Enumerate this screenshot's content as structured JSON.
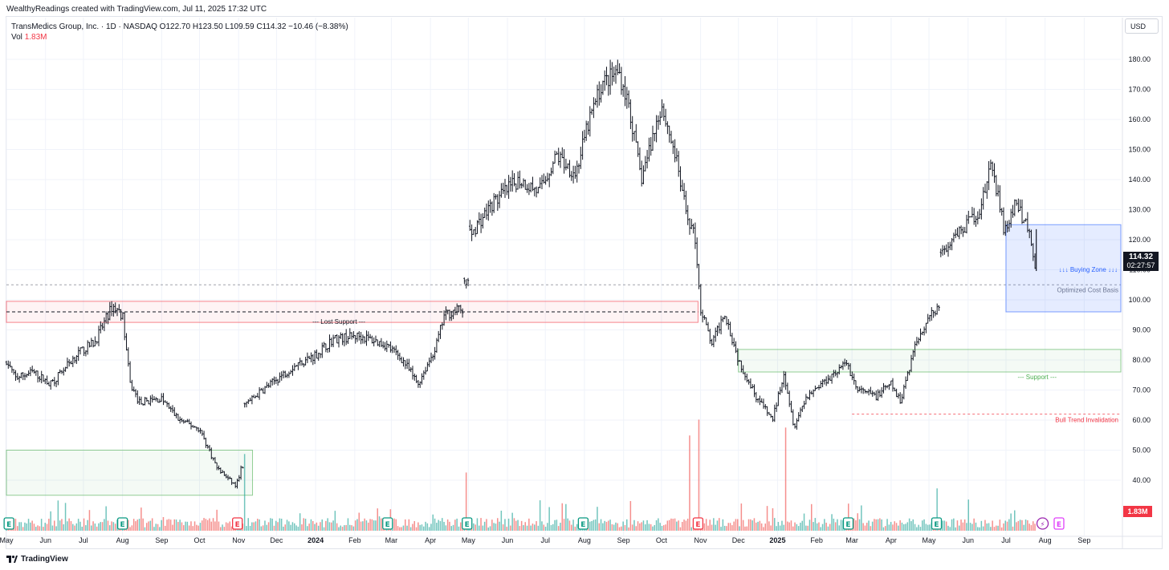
{
  "attribution": "WealthyReadings created with TradingView.com, Jul 11, 2025 17:32 UTC",
  "legend": {
    "line1": "TransMedics Group, Inc. · 1D · NASDAQ  O122.70  H123.50  L109.59  C114.32  −10.46 (−8.38%)",
    "vol_label": "Vol",
    "vol_value": "1.83M"
  },
  "currency": "USD",
  "last_price": "114.32",
  "countdown": "02:27:57",
  "vol_tag": "1.83M",
  "footer": "TradingView",
  "colors": {
    "up": "#26a69a",
    "down": "#ef5350",
    "grid": "#f0f3fa",
    "zone_red": "#f23645",
    "zone_green": "#4caf50",
    "zone_blue": "#2962ff",
    "earnings": "#089981",
    "earnings_red": "#f23645",
    "dividend": "#e040fb"
  },
  "chart_data": {
    "type": "ohlc",
    "title": "TransMedics Group, Inc. · 1D · NASDAQ",
    "y_axis": {
      "ticks": [
        40,
        50,
        60,
        70,
        80,
        90,
        100,
        110,
        120,
        130,
        140,
        150,
        160,
        170,
        180
      ],
      "labels": [
        "40.00",
        "50.00",
        "60.00",
        "70.00",
        "80.00",
        "90.00",
        "100.00",
        "110.00",
        "120.00",
        "130.00",
        "140.00",
        "150.00",
        "160.00",
        "170.00",
        "180.00"
      ]
    },
    "x_axis": {
      "labels": [
        "May",
        "Jun",
        "Jul",
        "Aug",
        "Sep",
        "Oct",
        "Nov",
        "Dec",
        "2024",
        "Feb",
        "Mar",
        "Apr",
        "May",
        "Jun",
        "Jul",
        "Aug",
        "Sep",
        "Oct",
        "Nov",
        "Dec",
        "2025",
        "Feb",
        "Mar",
        "Apr",
        "May",
        "Jun",
        "Jul",
        "Aug",
        "Sep"
      ],
      "bold": [
        "2024",
        "2025"
      ],
      "start": "2023-05-01",
      "end": "2025-09-30"
    },
    "price_path": [
      [
        "2023-05-01",
        80
      ],
      [
        "2023-05-08",
        74
      ],
      [
        "2023-05-22",
        76
      ],
      [
        "2023-06-05",
        72
      ],
      [
        "2023-06-26",
        82
      ],
      [
        "2023-07-10",
        86
      ],
      [
        "2023-07-24",
        98
      ],
      [
        "2023-08-01",
        95
      ],
      [
        "2023-08-07",
        72
      ],
      [
        "2023-08-14",
        66
      ],
      [
        "2023-09-01",
        67
      ],
      [
        "2023-09-15",
        60
      ],
      [
        "2023-10-01",
        57
      ],
      [
        "2023-10-15",
        44
      ],
      [
        "2023-10-30",
        38
      ],
      [
        "2023-11-03",
        44
      ],
      [
        "2023-11-06",
        65
      ],
      [
        "2023-11-20",
        70
      ],
      [
        "2023-12-15",
        78
      ],
      [
        "2024-01-02",
        82
      ],
      [
        "2024-01-15",
        87
      ],
      [
        "2024-02-05",
        88
      ],
      [
        "2024-02-26",
        85
      ],
      [
        "2024-03-10",
        80
      ],
      [
        "2024-03-22",
        72
      ],
      [
        "2024-04-05",
        84
      ],
      [
        "2024-04-12",
        95
      ],
      [
        "2024-04-25",
        97
      ],
      [
        "2024-04-30",
        106
      ],
      [
        "2024-05-03",
        122
      ],
      [
        "2024-05-20",
        132
      ],
      [
        "2024-06-10",
        140
      ],
      [
        "2024-06-26",
        136
      ],
      [
        "2024-07-10",
        148
      ],
      [
        "2024-07-25",
        142
      ],
      [
        "2024-08-05",
        160
      ],
      [
        "2024-08-15",
        172
      ],
      [
        "2024-08-28",
        176
      ],
      [
        "2024-09-05",
        165
      ],
      [
        "2024-09-15",
        140
      ],
      [
        "2024-10-01",
        165
      ],
      [
        "2024-10-12",
        148
      ],
      [
        "2024-10-20",
        130
      ],
      [
        "2024-10-28",
        120
      ],
      [
        "2024-11-01",
        97
      ],
      [
        "2024-11-10",
        85
      ],
      [
        "2024-11-20",
        96
      ],
      [
        "2024-12-01",
        80
      ],
      [
        "2024-12-15",
        68
      ],
      [
        "2024-12-28",
        60
      ],
      [
        "2025-01-06",
        76
      ],
      [
        "2025-01-14",
        58
      ],
      [
        "2025-01-24",
        68
      ],
      [
        "2025-02-10",
        74
      ],
      [
        "2025-02-25",
        79
      ],
      [
        "2025-03-05",
        70
      ],
      [
        "2025-03-20",
        68
      ],
      [
        "2025-04-01",
        72
      ],
      [
        "2025-04-08",
        66
      ],
      [
        "2025-04-20",
        85
      ],
      [
        "2025-05-01",
        95
      ],
      [
        "2025-05-08",
        97
      ],
      [
        "2025-05-12",
        115
      ],
      [
        "2025-05-25",
        122
      ],
      [
        "2025-06-10",
        130
      ],
      [
        "2025-06-20",
        145
      ],
      [
        "2025-06-30",
        122
      ],
      [
        "2025-07-08",
        132
      ],
      [
        "2025-07-18",
        125
      ],
      [
        "2025-07-25",
        110
      ]
    ],
    "last": {
      "open": 122.7,
      "high": 123.5,
      "low": 109.59,
      "close": 114.32,
      "change": -10.46,
      "change_pct": -8.38
    },
    "annotations": [
      {
        "kind": "zone",
        "label": "",
        "from": "2023-05-01",
        "to": "2024-10-30",
        "low": 92.5,
        "high": 99.5,
        "color": "red"
      },
      {
        "kind": "hline",
        "label": "--- Lost Support ---",
        "from": "2023-05-01",
        "to": "2024-10-30",
        "y": 96,
        "style": "dashed",
        "color": "black"
      },
      {
        "kind": "zone",
        "label": "",
        "from": "2023-05-01",
        "to": "2023-11-12",
        "low": 35,
        "high": 50,
        "color": "green"
      },
      {
        "kind": "hline",
        "label": "Optimized Cost Basis",
        "from": "2023-05-01",
        "to": "2025-09-30",
        "y": 105,
        "style": "dashed",
        "color": "gray"
      },
      {
        "kind": "zone",
        "label": "--- Support ---",
        "from": "2024-12-01",
        "to": "2025-09-30",
        "low": 76,
        "high": 83.5,
        "color": "green"
      },
      {
        "kind": "zone",
        "label": "↓↓↓ Buying Zone ↓↓↓",
        "from": "2025-07-01",
        "to": "2025-09-30",
        "low": 96,
        "high": 125,
        "color": "blue"
      },
      {
        "kind": "hline",
        "label": "Bull Trend Invalidation",
        "from": "2025-03-01",
        "to": "2025-09-30",
        "y": 62,
        "style": "dashed",
        "color": "red"
      }
    ],
    "volume_spikes": [
      [
        "2023-11-06",
        2.9
      ],
      [
        "2024-04-30",
        2.2
      ],
      [
        "2024-10-24",
        3.6
      ],
      [
        "2024-10-30",
        4.2
      ],
      [
        "2025-01-08",
        3.9
      ],
      [
        "2025-05-08",
        1.6
      ]
    ],
    "events": [
      {
        "date": "2023-05-03",
        "type": "earnings",
        "label": "E"
      },
      {
        "date": "2023-08-01",
        "type": "earnings",
        "label": "E"
      },
      {
        "date": "2023-10-31",
        "type": "earnings_red",
        "label": "E"
      },
      {
        "date": "2024-02-27",
        "type": "earnings",
        "label": "E"
      },
      {
        "date": "2024-04-30",
        "type": "earnings",
        "label": "E"
      },
      {
        "date": "2024-07-31",
        "type": "earnings",
        "label": "E"
      },
      {
        "date": "2024-10-30",
        "type": "earnings_red",
        "label": "E"
      },
      {
        "date": "2025-02-26",
        "type": "earnings",
        "label": "E"
      },
      {
        "date": "2025-05-07",
        "type": "earnings",
        "label": "E"
      },
      {
        "date": "2025-07-30",
        "type": "split",
        "label": "⚡"
      },
      {
        "date": "2025-08-12",
        "type": "dividend",
        "label": "E"
      }
    ]
  }
}
